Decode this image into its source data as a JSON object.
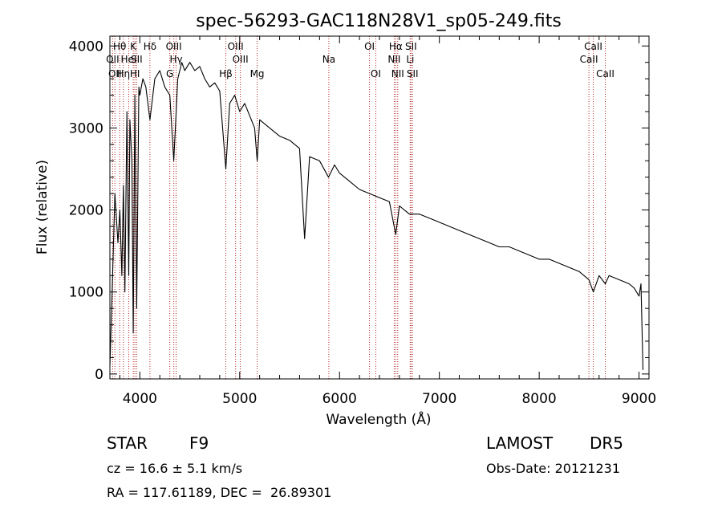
{
  "chart_data": {
    "type": "line",
    "title": "spec-56293-GAC118N28V1_sp05-249.fits",
    "xlabel": "Wavelength (Å)",
    "ylabel": "Flux (relative)",
    "xlim": [
      3700,
      9100
    ],
    "ylim": [
      -60,
      4120
    ],
    "xticks": [
      4000,
      5000,
      6000,
      7000,
      8000,
      9000
    ],
    "yticks": [
      0,
      1000,
      2000,
      3000,
      4000
    ],
    "series": [
      {
        "color": "#000000",
        "x": [
          3700,
          3720,
          3750,
          3780,
          3800,
          3820,
          3835,
          3850,
          3870,
          3889,
          3900,
          3920,
          3934,
          3950,
          3968,
          3990,
          4000,
          4030,
          4060,
          4101,
          4150,
          4200,
          4250,
          4300,
          4340,
          4380,
          4420,
          4450,
          4500,
          4550,
          4600,
          4650,
          4700,
          4750,
          4800,
          4861,
          4900,
          4950,
          5000,
          5050,
          5100,
          5150,
          5175,
          5200,
          5300,
          5400,
          5500,
          5600,
          5650,
          5700,
          5800,
          5890,
          5950,
          6000,
          6100,
          6200,
          6300,
          6400,
          6500,
          6563,
          6600,
          6700,
          6800,
          6900,
          7000,
          7100,
          7200,
          7300,
          7400,
          7500,
          7600,
          7700,
          7800,
          7900,
          8000,
          8100,
          8200,
          8300,
          8400,
          8498,
          8542,
          8600,
          8662,
          8700,
          8800,
          8900,
          8950,
          9000,
          9020,
          9040
        ],
        "y": [
          100,
          900,
          2200,
          1600,
          2000,
          1200,
          2300,
          1000,
          3200,
          1200,
          3100,
          2600,
          500,
          3400,
          800,
          3500,
          3400,
          3600,
          3500,
          3100,
          3600,
          3700,
          3500,
          3400,
          2600,
          3600,
          3800,
          3700,
          3800,
          3700,
          3750,
          3600,
          3500,
          3550,
          3450,
          2500,
          3300,
          3400,
          3200,
          3300,
          3150,
          3000,
          2600,
          3100,
          3000,
          2900,
          2850,
          2750,
          1650,
          2650,
          2600,
          2400,
          2550,
          2450,
          2350,
          2250,
          2200,
          2150,
          2100,
          1700,
          2050,
          1950,
          1950,
          1900,
          1850,
          1800,
          1750,
          1700,
          1650,
          1600,
          1550,
          1550,
          1500,
          1450,
          1400,
          1400,
          1350,
          1300,
          1250,
          1150,
          1000,
          1200,
          1100,
          1200,
          1150,
          1100,
          1050,
          950,
          1100,
          50
        ]
      }
    ],
    "lines": [
      {
        "x": 3727,
        "label": "OII",
        "row": 2
      },
      {
        "x": 3750,
        "label": "OII",
        "row": 3
      },
      {
        "x": 3798,
        "label": "Hθ",
        "row": 1
      },
      {
        "x": 3835,
        "label": "Hη",
        "row": 3
      },
      {
        "x": 3889,
        "label": "HeI",
        "row": 2
      },
      {
        "x": 3934,
        "label": "K",
        "row": 1
      },
      {
        "x": 3950,
        "label": "HI",
        "row": 3
      },
      {
        "x": 3968,
        "label": "SII",
        "row": 2
      },
      {
        "x": 4101,
        "label": "Hδ",
        "row": 1
      },
      {
        "x": 4300,
        "label": "G",
        "row": 3
      },
      {
        "x": 4340,
        "label": "OIII",
        "row": 1
      },
      {
        "x": 4363,
        "label": "Hγ",
        "row": 2
      },
      {
        "x": 4861,
        "label": "Hβ",
        "row": 3
      },
      {
        "x": 4959,
        "label": "OIII",
        "row": 1
      },
      {
        "x": 5007,
        "label": "OIII",
        "row": 2
      },
      {
        "x": 5175,
        "label": "Mg",
        "row": 3
      },
      {
        "x": 5893,
        "label": "Na",
        "row": 2
      },
      {
        "x": 6300,
        "label": "OI",
        "row": 1
      },
      {
        "x": 6363,
        "label": "OI",
        "row": 3
      },
      {
        "x": 6548,
        "label": "NII",
        "row": 2
      },
      {
        "x": 6563,
        "label": "Hα",
        "row": 1
      },
      {
        "x": 6583,
        "label": "NII",
        "row": 3
      },
      {
        "x": 6708,
        "label": "Li",
        "row": 2
      },
      {
        "x": 6716,
        "label": "SII",
        "row": 1
      },
      {
        "x": 6731,
        "label": "SII",
        "row": 3
      },
      {
        "x": 8498,
        "label": "CaII",
        "row": 2
      },
      {
        "x": 8542,
        "label": "CaII",
        "row": 1
      },
      {
        "x": 8662,
        "label": "CaII",
        "row": 3
      }
    ],
    "line_color": "#b22222",
    "grid": false,
    "legend": "none"
  },
  "info": {
    "class_label": "STAR",
    "subclass": "F9",
    "survey": "LAMOST",
    "release": "DR5",
    "cz": "cz = 16.6 ± 5.1 km/s",
    "obs_date": "Obs-Date: 20121231",
    "coords": "RA = 117.61189, DEC =  26.89301"
  }
}
